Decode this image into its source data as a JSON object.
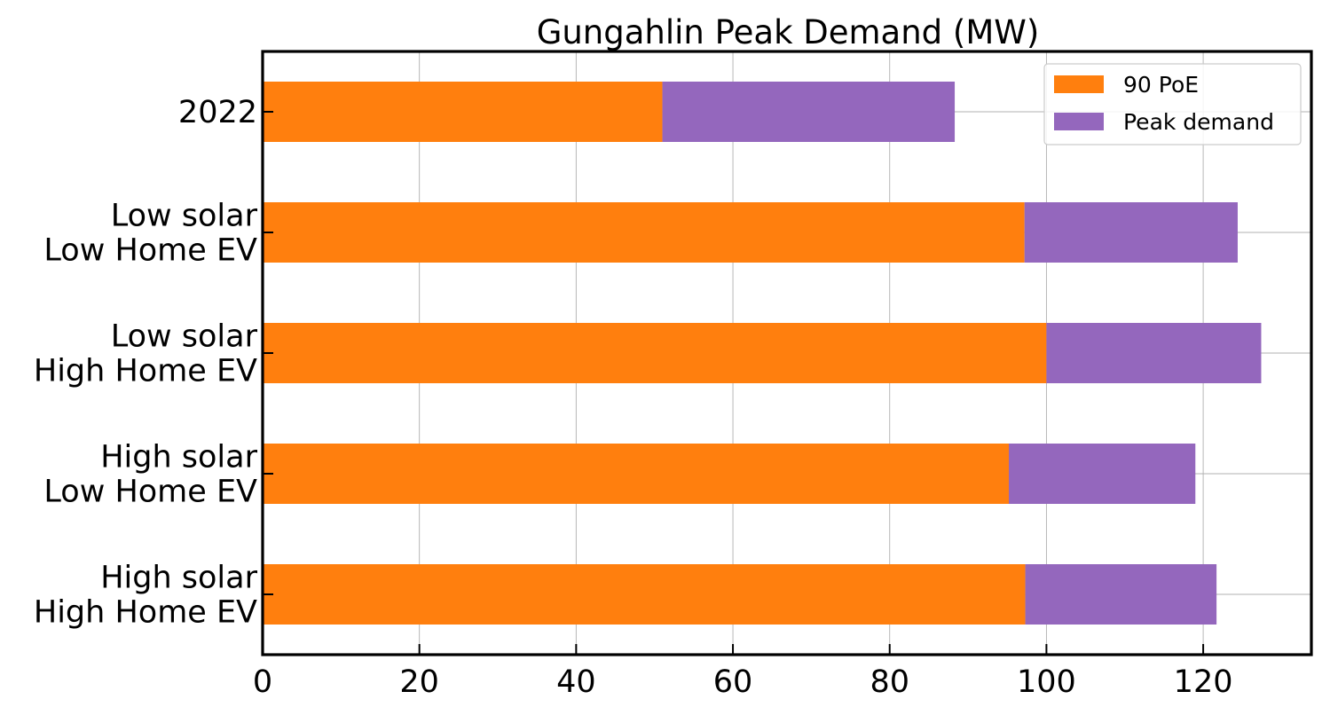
{
  "chart_data": {
    "type": "bar",
    "orientation": "horizontal",
    "stacked": true,
    "title": "Gungahlin Peak Demand (MW)",
    "xlabel": "",
    "ylabel": "",
    "categories": [
      [
        "2022"
      ],
      [
        "Low solar",
        "Low Home EV"
      ],
      [
        "Low solar",
        "High Home EV"
      ],
      [
        "High solar",
        "Low Home EV"
      ],
      [
        "High solar",
        "High Home EV"
      ]
    ],
    "series": [
      {
        "name": "90 PoE",
        "color": "#ff7f0e",
        "values": [
          51,
          97.2,
          100,
          95.2,
          97.3
        ]
      },
      {
        "name": "Peak demand",
        "color": "#9467bd",
        "values": [
          37.3,
          27.2,
          27.4,
          23.8,
          24.4
        ]
      }
    ],
    "xlim": [
      0,
      133.8
    ],
    "xticks": [
      0,
      20,
      40,
      60,
      80,
      100,
      120
    ],
    "grid": true,
    "legend_position": "top-right"
  }
}
